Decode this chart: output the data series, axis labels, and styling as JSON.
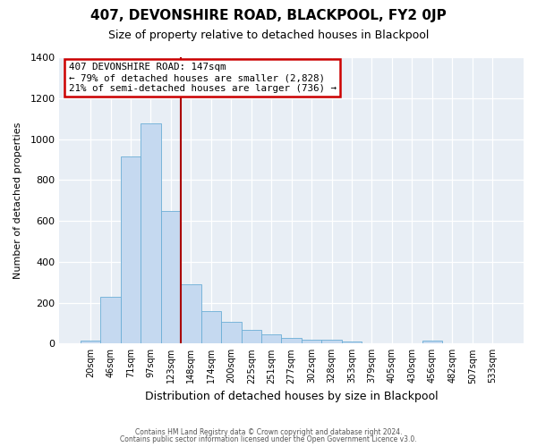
{
  "title": "407, DEVONSHIRE ROAD, BLACKPOOL, FY2 0JP",
  "subtitle": "Size of property relative to detached houses in Blackpool",
  "xlabel": "Distribution of detached houses by size in Blackpool",
  "ylabel": "Number of detached properties",
  "bar_labels": [
    "20sqm",
    "46sqm",
    "71sqm",
    "97sqm",
    "123sqm",
    "148sqm",
    "174sqm",
    "200sqm",
    "225sqm",
    "251sqm",
    "277sqm",
    "302sqm",
    "328sqm",
    "353sqm",
    "379sqm",
    "405sqm",
    "430sqm",
    "456sqm",
    "482sqm",
    "507sqm",
    "533sqm"
  ],
  "bar_heights": [
    15,
    228,
    915,
    1075,
    650,
    290,
    158,
    105,
    68,
    43,
    27,
    20,
    17,
    10,
    0,
    0,
    0,
    15,
    0,
    0,
    0
  ],
  "bar_color": "#c5d9f0",
  "bar_edge_color": "#6baed6",
  "vline_index": 5,
  "vline_color": "#aa0000",
  "annotation_title": "407 DEVONSHIRE ROAD: 147sqm",
  "annotation_line1": "← 79% of detached houses are smaller (2,828)",
  "annotation_line2": "21% of semi-detached houses are larger (736) →",
  "annotation_box_color": "#ffffff",
  "annotation_box_edge": "#cc0000",
  "ylim": [
    0,
    1400
  ],
  "yticks": [
    0,
    200,
    400,
    600,
    800,
    1000,
    1200,
    1400
  ],
  "plot_bg_color": "#e8eef5",
  "fig_bg_color": "#ffffff",
  "footer1": "Contains HM Land Registry data © Crown copyright and database right 2024.",
  "footer2": "Contains public sector information licensed under the Open Government Licence v3.0."
}
